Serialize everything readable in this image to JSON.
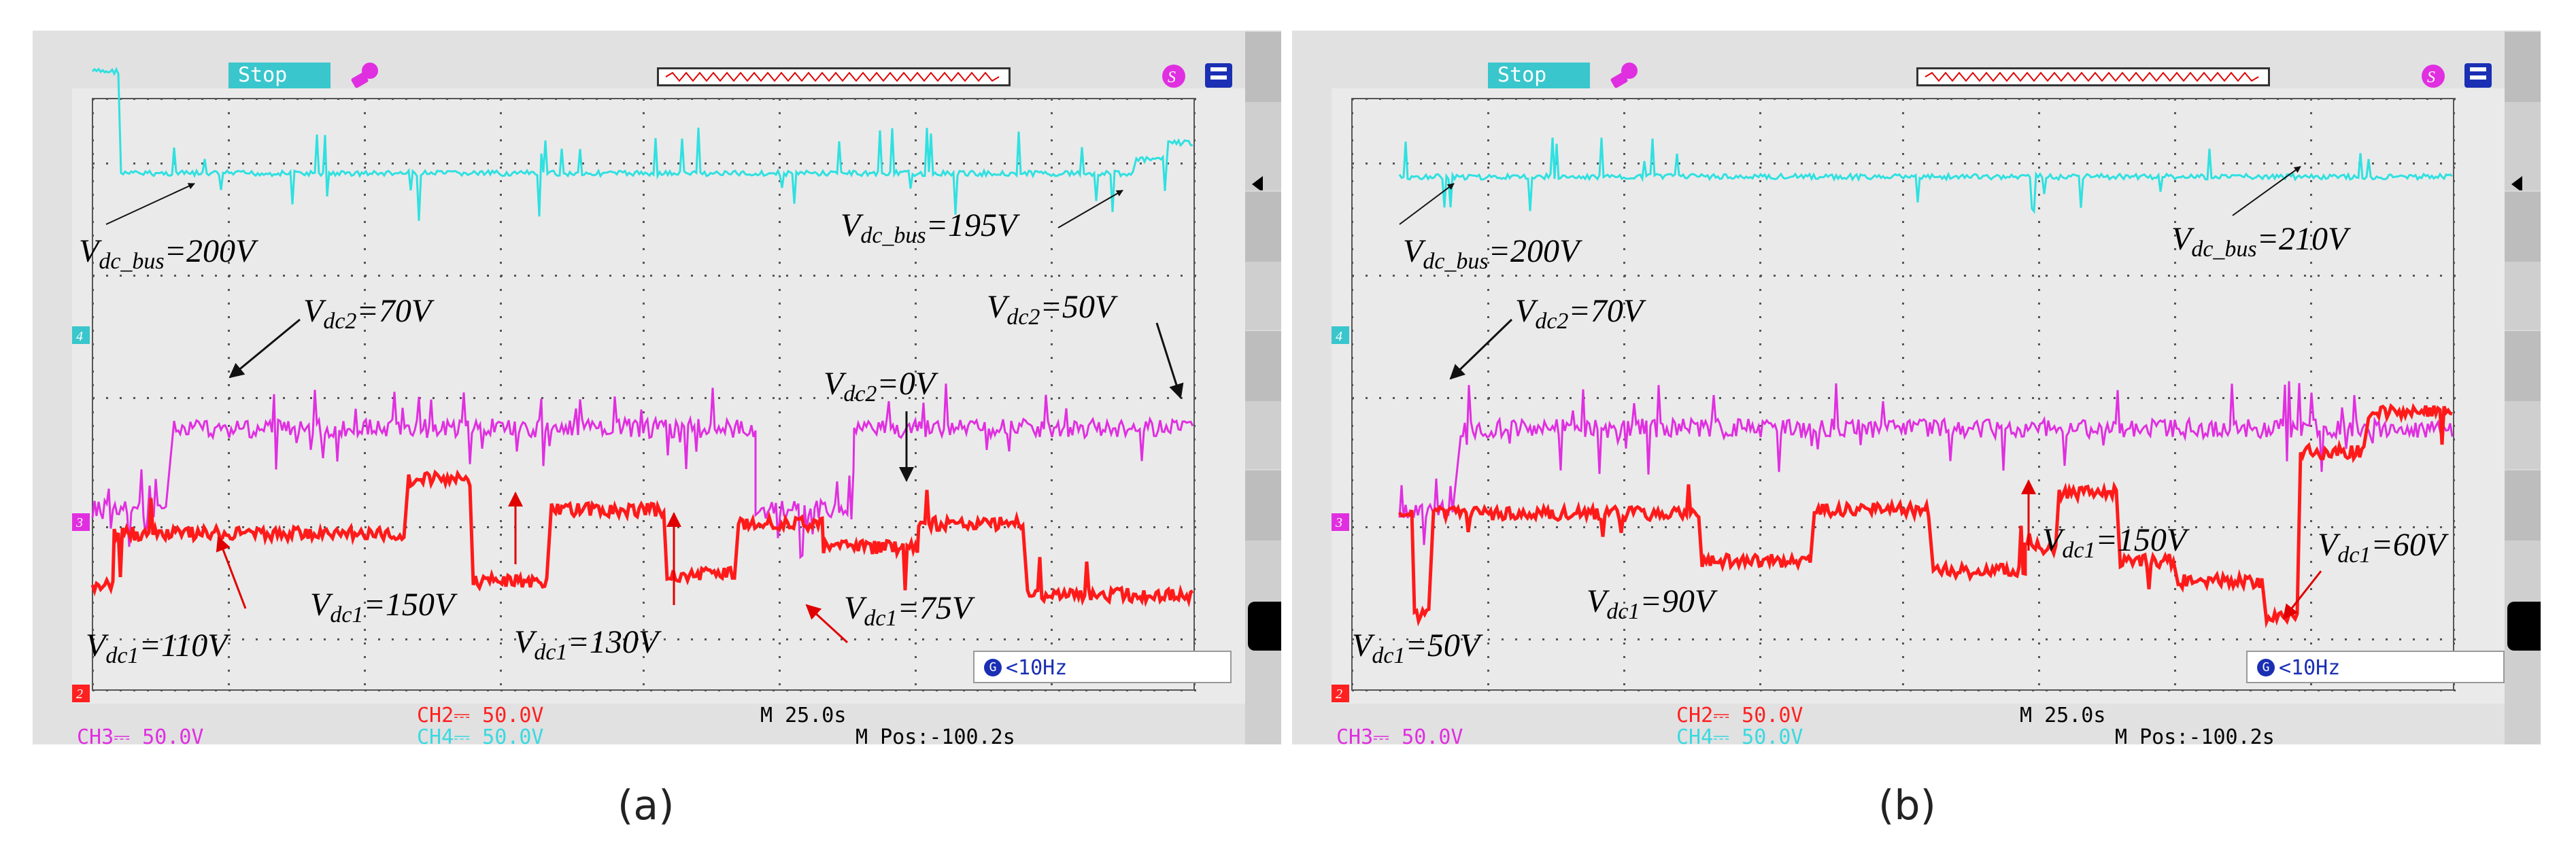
{
  "colors": {
    "ch1": "#ff1a1a",
    "ch3": "#e02fe0",
    "ch4": "#30e0e0",
    "grid": "#555555",
    "screen": "#eaeaea",
    "frame": "#e1e1e1"
  },
  "icons": [
    "lock-icon",
    "trigger-icon",
    "save-icon",
    "blue-g-icon"
  ],
  "scopes": [
    {
      "caption": "(a)",
      "stop_label": "Stop",
      "freq": "<10Hz",
      "freq_badge": "G",
      "ch2_scale": "CH2⎓ 50.0V",
      "ch3_scale": "CH3⎓ 50.0V",
      "ch4_scale": "CH4⎓ 50.0V",
      "time_base": "M 25.0s",
      "m_pos": "M Pos:-100.2s",
      "ann": {
        "vbus_l_sym": "V",
        "vbus_l_sub": "dc_bus",
        "vbus_l_val": "=200V",
        "vbus_r_sym": "V",
        "vbus_r_sub": "dc_bus",
        "vbus_r_val": "=195V",
        "vdc2_a_sym": "V",
        "vdc2_a_sub": "dc2",
        "vdc2_a_val": "=70V",
        "vdc2_b_sym": "V",
        "vdc2_b_sub": "dc2",
        "vdc2_b_val": "=50V",
        "vdc2_c_sym": "V",
        "vdc2_c_sub": "dc2",
        "vdc2_c_val": "=0V",
        "vdc1_a_sym": "V",
        "vdc1_a_sub": "dc1",
        "vdc1_a_val": "=110V",
        "vdc1_b_sym": "V",
        "vdc1_b_sub": "dc1",
        "vdc1_b_val": "=150V",
        "vdc1_c_sym": "V",
        "vdc1_c_sub": "dc1",
        "vdc1_c_val": "=130V",
        "vdc1_d_sym": "V",
        "vdc1_d_sub": "dc1",
        "vdc1_d_val": "=75V"
      }
    },
    {
      "caption": "(b)",
      "stop_label": "Stop",
      "freq": "<10Hz",
      "freq_badge": "G",
      "ch2_scale": "CH2⎓ 50.0V",
      "ch3_scale": "CH3⎓ 50.0V",
      "ch4_scale": "CH4⎓ 50.0V",
      "time_base": "M 25.0s",
      "m_pos": "M Pos:-100.2s",
      "ann": {
        "vbus_l_sym": "V",
        "vbus_l_sub": "dc_bus",
        "vbus_l_val": "=200V",
        "vbus_r_sym": "V",
        "vbus_r_sub": "dc_bus",
        "vbus_r_val": "=210V",
        "vdc2_a_sym": "V",
        "vdc2_a_sub": "dc2",
        "vdc2_a_val": "=70V",
        "vdc1_a_sym": "V",
        "vdc1_a_sub": "dc1",
        "vdc1_a_val": "=50V",
        "vdc1_b_sym": "V",
        "vdc1_b_sub": "dc1",
        "vdc1_b_val": "=90V",
        "vdc1_c_sym": "V",
        "vdc1_c_sub": "dc1",
        "vdc1_c_val": "=150V",
        "vdc1_d_sym": "V",
        "vdc1_d_sub": "dc1",
        "vdc1_d_val": "=60V"
      }
    }
  ],
  "channel_markers": [
    "4",
    "3",
    "2"
  ]
}
